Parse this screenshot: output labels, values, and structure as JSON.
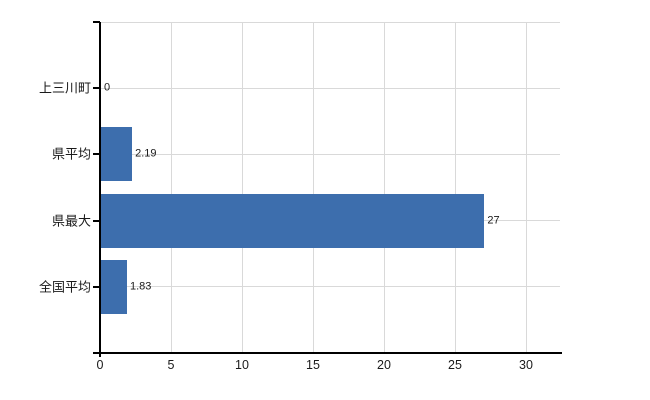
{
  "chart_data": {
    "type": "bar",
    "orientation": "horizontal",
    "title": "",
    "categories": [
      "上三川町",
      "県平均",
      "県最大",
      "全国平均"
    ],
    "values": [
      0,
      2.19,
      27,
      1.83
    ],
    "value_labels": [
      "0",
      "2.19",
      "27",
      "1.83"
    ],
    "x_ticks": [
      0,
      5,
      10,
      15,
      20,
      25,
      30
    ],
    "x_tick_labels": [
      "0",
      "5",
      "10",
      "15",
      "20",
      "25",
      "30"
    ],
    "xlim": [
      0,
      32.4
    ],
    "grid": true,
    "legend": false,
    "bar_color": "#3d6ead",
    "grid_color": "#d9d9d9",
    "axis_color": "#000000",
    "text_color": "#1a1a1a"
  }
}
